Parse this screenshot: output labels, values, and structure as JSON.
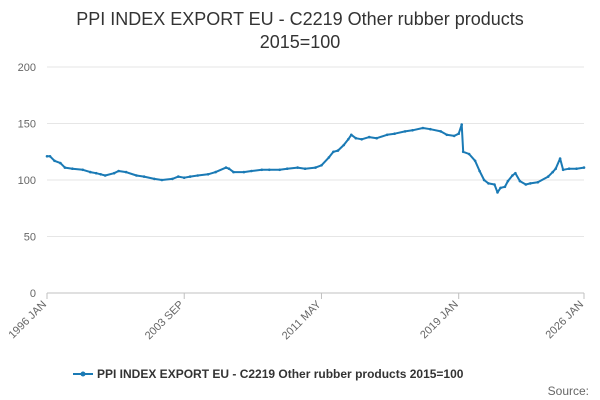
{
  "chart_data": {
    "type": "line",
    "title": "PPI INDEX EXPORT EU - C2219 Other rubber products",
    "subtitle": "2015=100",
    "xlabel": "",
    "ylabel": "",
    "x_range": [
      "1996-01",
      "2026-01"
    ],
    "ylim": [
      0,
      200
    ],
    "y_ticks": [
      0,
      50,
      100,
      150,
      200
    ],
    "x_tick_labels": [
      "1996 JAN",
      "2003 SEP",
      "2011 MAY",
      "2019 JAN",
      "2026 JAN"
    ],
    "x_tick_dates": [
      "1996-01",
      "2003-09",
      "2011-05",
      "2019-01",
      "2026-01"
    ],
    "grid": true,
    "legend_position": "bottom",
    "source_label": "Source:",
    "line_color": "#1a7ab5",
    "series": [
      {
        "name": "PPI INDEX EXPORT EU - C2219 Other rubber products 2015=100",
        "points": [
          [
            "1996-01",
            121
          ],
          [
            "1996-03",
            121
          ],
          [
            "1996-06",
            117
          ],
          [
            "1996-10",
            115
          ],
          [
            "1997-01",
            111
          ],
          [
            "1997-06",
            110
          ],
          [
            "1998-01",
            109
          ],
          [
            "1998-06",
            107
          ],
          [
            "1998-10",
            106
          ],
          [
            "1999-01",
            105
          ],
          [
            "1999-04",
            104
          ],
          [
            "1999-10",
            106
          ],
          [
            "2000-01",
            108
          ],
          [
            "2000-06",
            107
          ],
          [
            "2001-01",
            104
          ],
          [
            "2001-06",
            103
          ],
          [
            "2002-01",
            101
          ],
          [
            "2002-06",
            100
          ],
          [
            "2003-01",
            101
          ],
          [
            "2003-05",
            103
          ],
          [
            "2003-09",
            102
          ],
          [
            "2004-01",
            103
          ],
          [
            "2004-06",
            104
          ],
          [
            "2005-01",
            105
          ],
          [
            "2005-06",
            107
          ],
          [
            "2006-01",
            111
          ],
          [
            "2006-03",
            110
          ],
          [
            "2006-06",
            107
          ],
          [
            "2007-01",
            107
          ],
          [
            "2007-06",
            108
          ],
          [
            "2008-01",
            109
          ],
          [
            "2008-06",
            109
          ],
          [
            "2009-01",
            109
          ],
          [
            "2009-06",
            110
          ],
          [
            "2010-01",
            111
          ],
          [
            "2010-06",
            110
          ],
          [
            "2011-01",
            111
          ],
          [
            "2011-05",
            113
          ],
          [
            "2011-10",
            120
          ],
          [
            "2012-01",
            125
          ],
          [
            "2012-04",
            126
          ],
          [
            "2012-08",
            131
          ],
          [
            "2012-11",
            136
          ],
          [
            "2013-01",
            140
          ],
          [
            "2013-04",
            137
          ],
          [
            "2013-08",
            136
          ],
          [
            "2014-01",
            138
          ],
          [
            "2014-06",
            137
          ],
          [
            "2015-01",
            140
          ],
          [
            "2015-06",
            141
          ],
          [
            "2016-01",
            143
          ],
          [
            "2016-06",
            144
          ],
          [
            "2017-01",
            146
          ],
          [
            "2017-06",
            145
          ],
          [
            "2018-01",
            143
          ],
          [
            "2018-05",
            140
          ],
          [
            "2018-10",
            139
          ],
          [
            "2019-01",
            141
          ],
          [
            "2019-03",
            149
          ],
          [
            "2019-04",
            125
          ],
          [
            "2019-08",
            123
          ],
          [
            "2019-12",
            117
          ],
          [
            "2020-03",
            108
          ],
          [
            "2020-06",
            100
          ],
          [
            "2020-09",
            97
          ],
          [
            "2021-01",
            96
          ],
          [
            "2021-03",
            89
          ],
          [
            "2021-05",
            93
          ],
          [
            "2021-08",
            94
          ],
          [
            "2021-10",
            99
          ],
          [
            "2022-01",
            104
          ],
          [
            "2022-03",
            106
          ],
          [
            "2022-06",
            99
          ],
          [
            "2022-10",
            96
          ],
          [
            "2023-01",
            97
          ],
          [
            "2023-06",
            98
          ],
          [
            "2024-01",
            103
          ],
          [
            "2024-04",
            107
          ],
          [
            "2024-06",
            110
          ],
          [
            "2024-09",
            119
          ],
          [
            "2024-11",
            109
          ],
          [
            "2025-03",
            110
          ],
          [
            "2025-08",
            110
          ],
          [
            "2026-01",
            111
          ]
        ]
      }
    ]
  }
}
